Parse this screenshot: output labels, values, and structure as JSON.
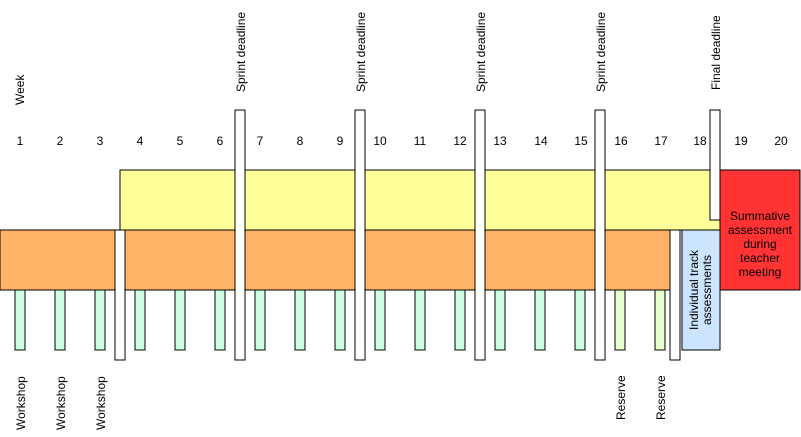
{
  "week_label": "Week",
  "weeks": [
    "1",
    "2",
    "3",
    "4",
    "5",
    "6",
    "7",
    "8",
    "9",
    "10",
    "11",
    "12",
    "13",
    "14",
    "15",
    "16",
    "17",
    "18",
    "19",
    "20"
  ],
  "sprint_deadline_label": "Sprint deadline",
  "final_deadline_label": "Final deadline",
  "summative": {
    "line1": "Summative",
    "line2": "assessment",
    "line3": "during",
    "line4": "teacher",
    "line5": "meeting"
  },
  "individual_track": {
    "line1": "Individual track",
    "line2": "assessments"
  },
  "workshop_label": "Workshop",
  "reserve_label": "Reserve",
  "colors": {
    "yellow_band": "#ffff99",
    "orange_band": "#ffb366",
    "red_box": "#ff3333",
    "blue_box": "#cce5ff",
    "green_bar": "#ccffe6",
    "reserve_bar": "#e6ffcc",
    "deadline_bar": "#ffffff"
  }
}
